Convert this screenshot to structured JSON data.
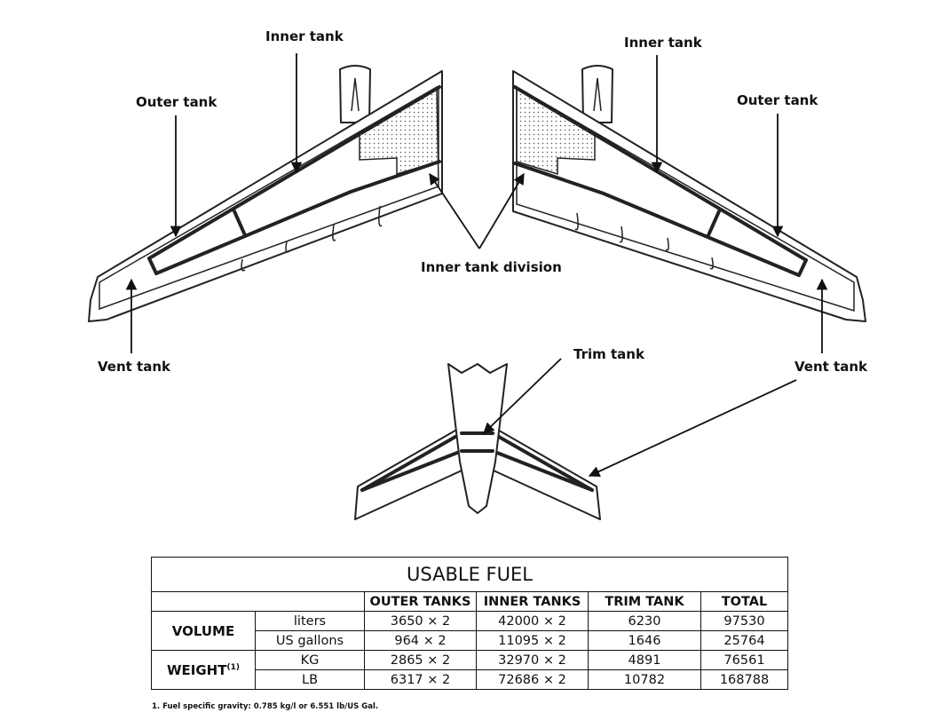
{
  "labels": {
    "inner_tank_left": "Inner tank",
    "outer_tank_left": "Outer tank",
    "inner_tank_right": "Inner tank",
    "outer_tank_right": "Outer tank",
    "inner_tank_division": "Inner tank division",
    "vent_tank_left": "Vent tank",
    "vent_tank_right": "Vent tank",
    "trim_tank": "Trim tank"
  },
  "table": {
    "title": "USABLE FUEL",
    "headers": [
      "OUTER TANKS",
      "INNER TANKS",
      "TRIM TANK",
      "TOTAL"
    ],
    "volume_label": "VOLUME",
    "weight_label": "WEIGHT",
    "weight_note_ref": "(1)",
    "rows": [
      {
        "unit": "liters",
        "outer": "3650 × 2",
        "inner": "42000 × 2",
        "trim": "6230",
        "total": "97530"
      },
      {
        "unit": "US gallons",
        "outer": "964 × 2",
        "inner": "11095 × 2",
        "trim": "1646",
        "total": "25764"
      },
      {
        "unit": "KG",
        "outer": "2865 × 2",
        "inner": "32970 × 2",
        "trim": "4891",
        "total": "76561"
      },
      {
        "unit": "LB",
        "outer": "6317 × 2",
        "inner": "72686 × 2",
        "trim": "10782",
        "total": "168788"
      }
    ]
  },
  "footnote": "1. Fuel specific gravity: 0.785 kg/l or 6.551 lb/US Gal."
}
